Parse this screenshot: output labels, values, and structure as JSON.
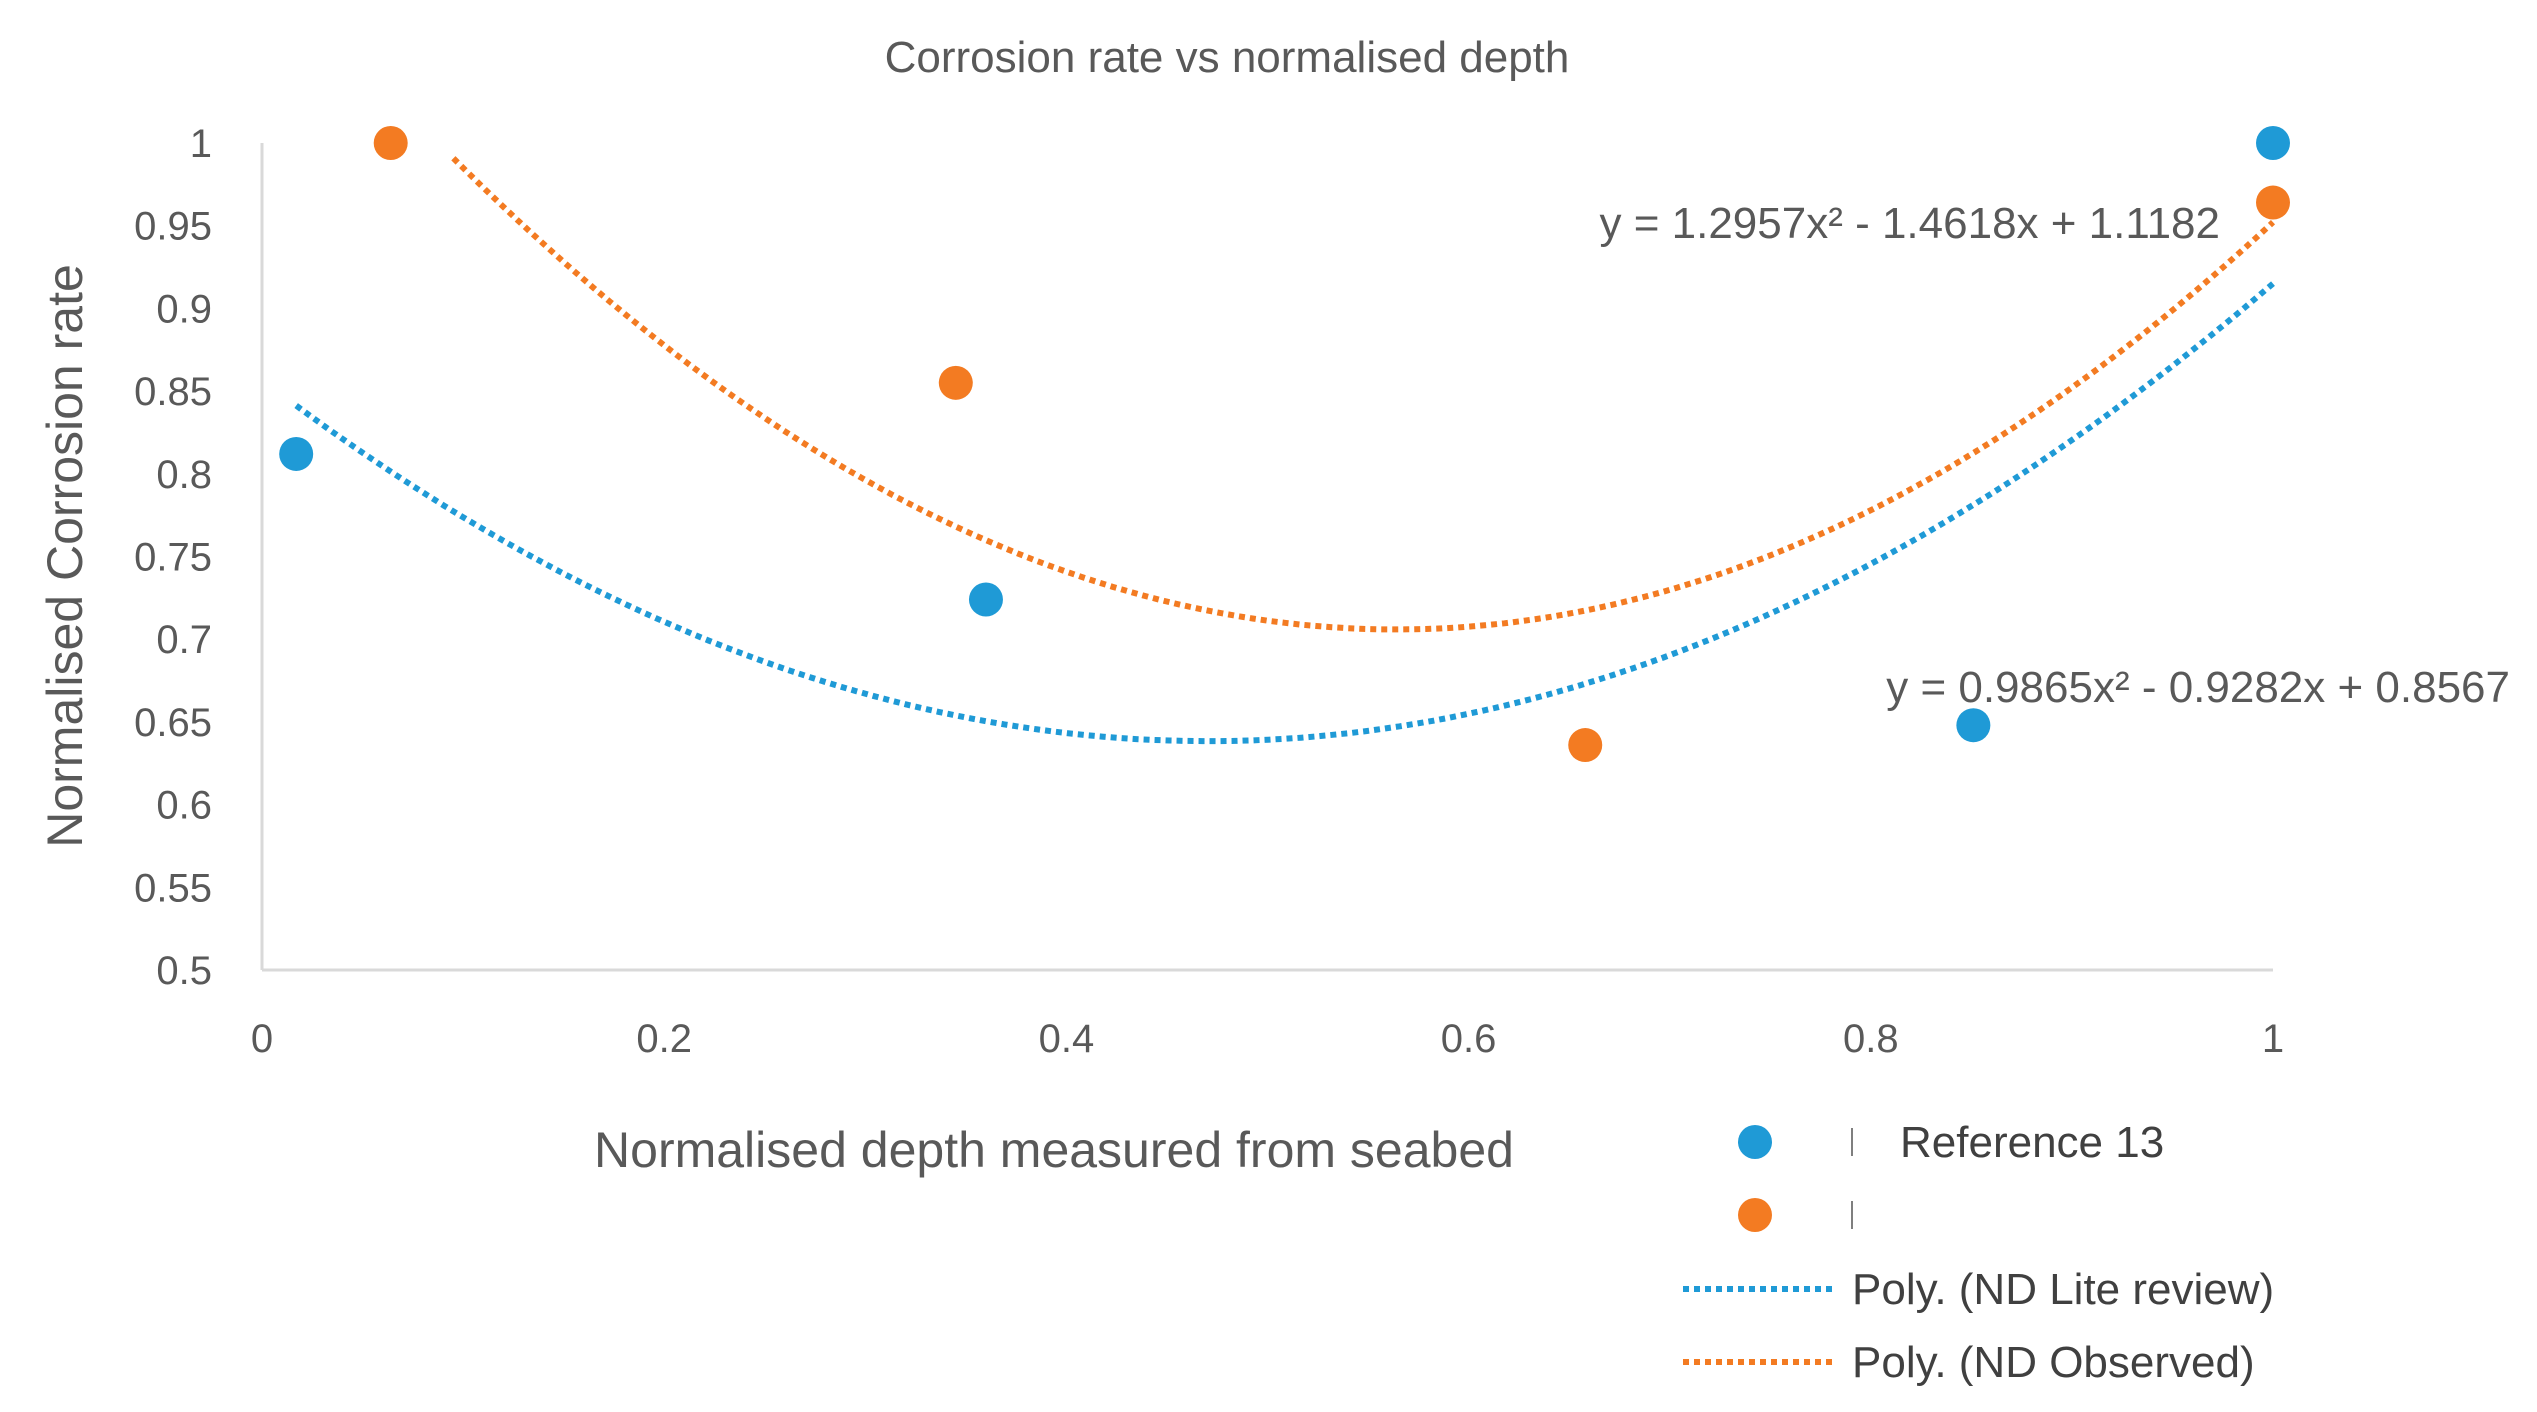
{
  "chart_data": {
    "type": "scatter",
    "title": "Corrosion rate vs normalised depth",
    "xlabel": "Normalised depth measured from seabed",
    "ylabel": "Normalised Corrosion rate",
    "xlim": [
      0,
      1
    ],
    "ylim": [
      0.5,
      1
    ],
    "x_ticks": [
      "0",
      "0.2",
      "0.4",
      "0.6",
      "0.8",
      "1"
    ],
    "y_ticks": [
      "0.5",
      "0.55",
      "0.6",
      "0.65",
      "0.7",
      "0.75",
      "0.8",
      "0.85",
      "0.9",
      "0.95",
      "1"
    ],
    "grid": false,
    "legend_position": "bottom-right",
    "series": [
      {
        "name": "Reference 13",
        "color": "#1f9ad6",
        "points": [
          {
            "x": 0.017,
            "y": 0.812
          },
          {
            "x": 0.36,
            "y": 0.724
          },
          {
            "x": 0.851,
            "y": 0.648
          },
          {
            "x": 1.0,
            "y": 1.0
          }
        ]
      },
      {
        "name": "",
        "color": "#f37b22",
        "points": [
          {
            "x": 0.064,
            "y": 1.0
          },
          {
            "x": 0.345,
            "y": 0.855
          },
          {
            "x": 0.658,
            "y": 0.636
          },
          {
            "x": 1.0,
            "y": 0.964
          }
        ]
      }
    ],
    "trendlines": [
      {
        "name": "Poly. (ND Lite review)",
        "color": "#1f9ad6",
        "coefficients": [
          0.9865,
          -0.9282,
          0.8567
        ],
        "x_range": [
          0.017,
          1.0
        ],
        "equation": "y = 0.9865x² - 0.9282x + 0.8567"
      },
      {
        "name": "Poly. (ND Observed)",
        "color": "#f37b22",
        "coefficients": [
          1.2957,
          -1.4618,
          1.1182
        ],
        "x_range": [
          0.064,
          1.0
        ],
        "equation": "y = 1.2957x² - 1.4618x + 1.1182"
      }
    ]
  }
}
